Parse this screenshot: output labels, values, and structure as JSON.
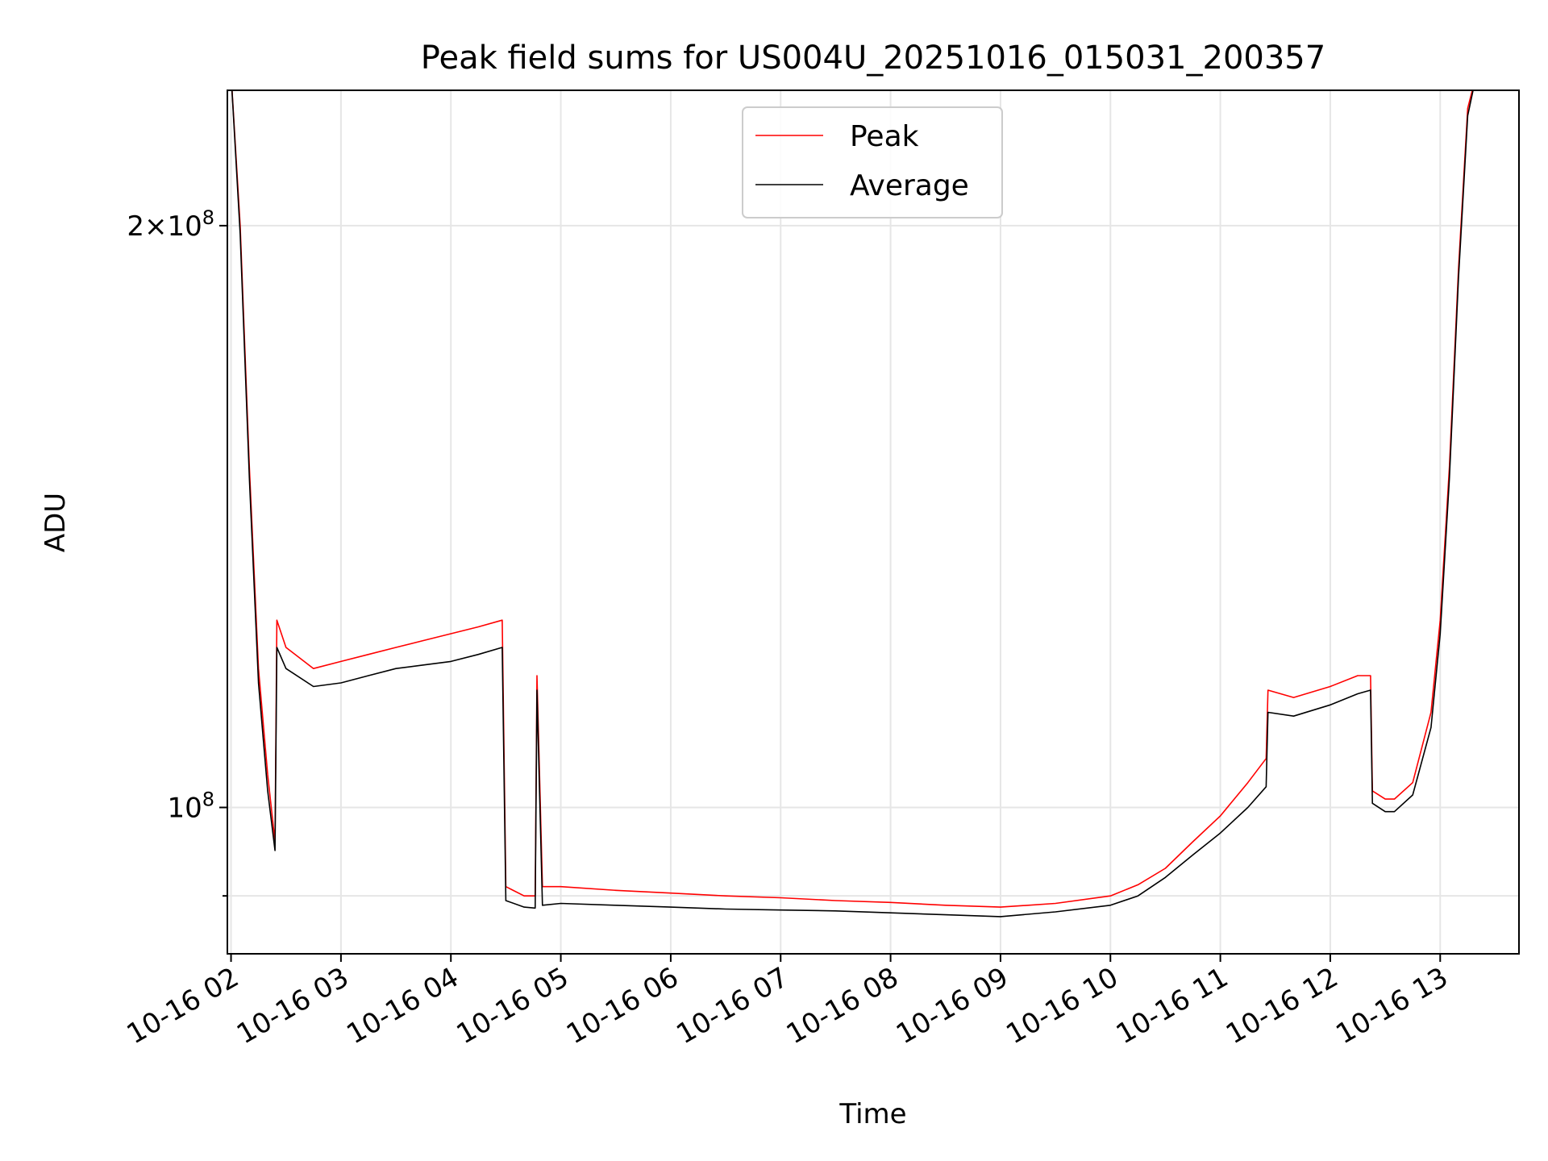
{
  "chart_data": {
    "type": "line",
    "title": "Peak field sums for US004U_20251016_015031_200357",
    "xlabel": "Time",
    "ylabel": "ADU",
    "xlim": [
      "2025-10-16 01:58",
      "2025-10-16 13:43"
    ],
    "ylim": [
      84000000,
      235000000
    ],
    "yscale": "log",
    "grid": true,
    "legend": "upper center",
    "x_tick_labels": [
      "10-16 02",
      "10-16 03",
      "10-16 04",
      "10-16 05",
      "10-16 06",
      "10-16 07",
      "10-16 08",
      "10-16 09",
      "10-16 10",
      "10-16 11",
      "10-16 12",
      "10-16 13"
    ],
    "x_tick_rotation_deg": 30,
    "y_tick_labels": [
      {
        "value": 200000000,
        "mantissa": "2",
        "exponent": "8"
      },
      {
        "value": 100000000,
        "mantissa": "",
        "exponent": "8"
      }
    ],
    "y_minor_ticks": [
      90000000
    ],
    "series": [
      {
        "name": "Peak",
        "color": "#ff0000",
        "x": [
          "2025-10-16 02:00",
          "2025-10-16 02:05",
          "2025-10-16 02:10",
          "2025-10-16 02:15",
          "2025-10-16 02:20",
          "2025-10-16 02:24",
          "2025-10-16 02:25",
          "2025-10-16 02:30",
          "2025-10-16 02:45",
          "2025-10-16 03:00",
          "2025-10-16 03:15",
          "2025-10-16 03:30",
          "2025-10-16 03:45",
          "2025-10-16 04:00",
          "2025-10-16 04:15",
          "2025-10-16 04:28",
          "2025-10-16 04:30",
          "2025-10-16 04:40",
          "2025-10-16 04:46",
          "2025-10-16 04:47",
          "2025-10-16 04:50",
          "2025-10-16 05:00",
          "2025-10-16 05:30",
          "2025-10-16 06:00",
          "2025-10-16 06:30",
          "2025-10-16 07:00",
          "2025-10-16 07:30",
          "2025-10-16 08:00",
          "2025-10-16 08:30",
          "2025-10-16 09:00",
          "2025-10-16 09:30",
          "2025-10-16 10:00",
          "2025-10-16 10:15",
          "2025-10-16 10:30",
          "2025-10-16 10:45",
          "2025-10-16 11:00",
          "2025-10-16 11:15",
          "2025-10-16 11:25",
          "2025-10-16 11:26",
          "2025-10-16 11:40",
          "2025-10-16 12:00",
          "2025-10-16 12:15",
          "2025-10-16 12:22",
          "2025-10-16 12:23",
          "2025-10-16 12:30",
          "2025-10-16 12:35",
          "2025-10-16 12:45",
          "2025-10-16 12:55",
          "2025-10-16 13:00",
          "2025-10-16 13:05",
          "2025-10-16 13:10",
          "2025-10-16 13:15",
          "2025-10-16 13:20"
        ],
        "y": [
          240000000,
          200000000,
          150000000,
          118000000,
          104000000,
          96000000,
          125000000,
          121000000,
          118000000,
          119000000,
          120000000,
          121000000,
          122000000,
          123000000,
          124000000,
          125000000,
          91000000,
          90000000,
          90000000,
          117000000,
          91000000,
          91000000,
          90600000,
          90300000,
          90000000,
          89800000,
          89500000,
          89300000,
          89000000,
          88800000,
          89200000,
          90000000,
          91200000,
          93000000,
          96000000,
          99000000,
          103000000,
          106000000,
          115000000,
          114000000,
          115500000,
          117000000,
          117000000,
          102000000,
          101000000,
          101000000,
          103000000,
          112000000,
          125000000,
          150000000,
          190000000,
          230000000,
          240000000
        ]
      },
      {
        "name": "Average",
        "color": "#000000",
        "x": [
          "2025-10-16 02:00",
          "2025-10-16 02:05",
          "2025-10-16 02:10",
          "2025-10-16 02:15",
          "2025-10-16 02:20",
          "2025-10-16 02:24",
          "2025-10-16 02:25",
          "2025-10-16 02:30",
          "2025-10-16 02:45",
          "2025-10-16 03:00",
          "2025-10-16 03:15",
          "2025-10-16 03:30",
          "2025-10-16 03:45",
          "2025-10-16 04:00",
          "2025-10-16 04:15",
          "2025-10-16 04:28",
          "2025-10-16 04:30",
          "2025-10-16 04:40",
          "2025-10-16 04:46",
          "2025-10-16 04:47",
          "2025-10-16 04:50",
          "2025-10-16 05:00",
          "2025-10-16 05:30",
          "2025-10-16 06:00",
          "2025-10-16 06:30",
          "2025-10-16 07:00",
          "2025-10-16 07:30",
          "2025-10-16 08:00",
          "2025-10-16 08:30",
          "2025-10-16 09:00",
          "2025-10-16 09:30",
          "2025-10-16 10:00",
          "2025-10-16 10:15",
          "2025-10-16 10:30",
          "2025-10-16 10:45",
          "2025-10-16 11:00",
          "2025-10-16 11:15",
          "2025-10-16 11:25",
          "2025-10-16 11:26",
          "2025-10-16 11:40",
          "2025-10-16 12:00",
          "2025-10-16 12:15",
          "2025-10-16 12:22",
          "2025-10-16 12:23",
          "2025-10-16 12:30",
          "2025-10-16 12:35",
          "2025-10-16 12:45",
          "2025-10-16 12:55",
          "2025-10-16 13:00",
          "2025-10-16 13:05",
          "2025-10-16 13:10",
          "2025-10-16 13:15",
          "2025-10-16 13:20"
        ],
        "y": [
          240000000,
          198000000,
          148000000,
          116000000,
          102000000,
          95000000,
          121000000,
          118000000,
          115500000,
          116000000,
          117000000,
          118000000,
          118500000,
          119000000,
          120000000,
          121000000,
          89500000,
          88800000,
          88700000,
          115000000,
          89000000,
          89200000,
          89000000,
          88800000,
          88600000,
          88500000,
          88400000,
          88200000,
          88000000,
          87800000,
          88300000,
          89000000,
          90000000,
          92000000,
          94500000,
          97000000,
          100000000,
          102500000,
          112000000,
          111500000,
          113000000,
          114500000,
          115000000,
          100500000,
          99500000,
          99500000,
          101500000,
          110000000,
          123000000,
          148000000,
          188000000,
          228000000,
          240000000
        ]
      }
    ]
  }
}
